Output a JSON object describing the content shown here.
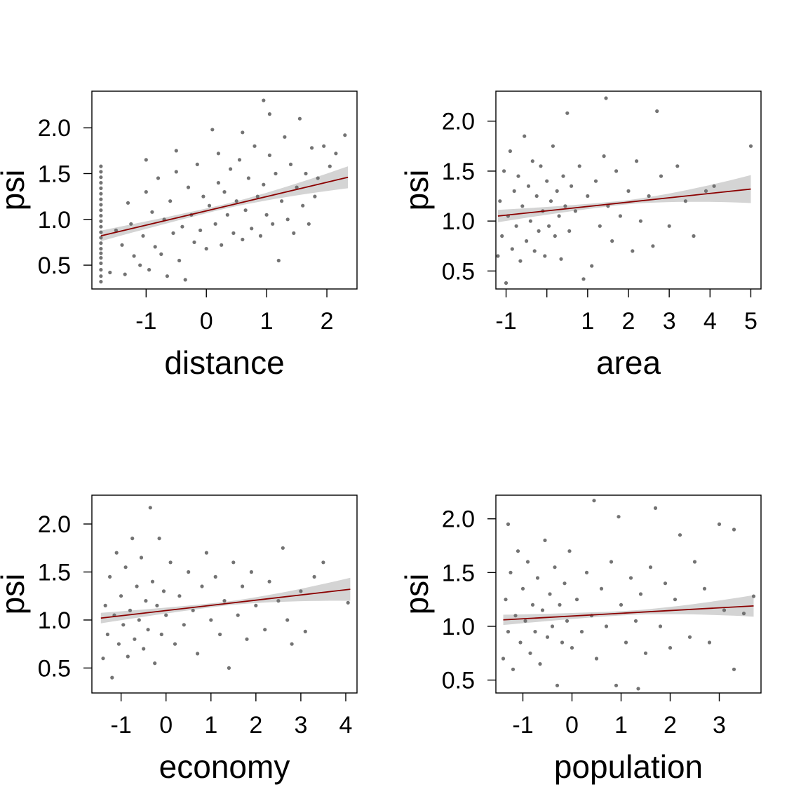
{
  "colors": {
    "points": "#737373",
    "fit_line": "#8b0000",
    "ci_band": "#d4d4d4"
  },
  "chart_data": [
    {
      "type": "scatter",
      "xlabel": "distance",
      "ylabel": "psi",
      "xlim": [
        -1.9,
        2.5
      ],
      "ylim": [
        0.24,
        2.4
      ],
      "xticks": [
        -1,
        0,
        1,
        2
      ],
      "xtick_labels": [
        "-1",
        "0",
        "1",
        "2"
      ],
      "yticks": [
        0.5,
        1.0,
        1.5,
        2.0
      ],
      "ytick_labels": [
        "0.5",
        "1.0",
        "1.5",
        "2.0"
      ],
      "fit": {
        "x0": -1.75,
        "y0": 0.82,
        "x1": 2.35,
        "y1": 1.46,
        "ci_start": 0.025,
        "ci_end": 0.12
      },
      "points": [
        [
          -1.75,
          0.32
        ],
        [
          -1.75,
          0.38
        ],
        [
          -1.75,
          0.45
        ],
        [
          -1.75,
          0.52
        ],
        [
          -1.75,
          0.58
        ],
        [
          -1.75,
          0.63
        ],
        [
          -1.75,
          0.68
        ],
        [
          -1.75,
          0.74
        ],
        [
          -1.75,
          0.8
        ],
        [
          -1.75,
          0.86
        ],
        [
          -1.75,
          0.92
        ],
        [
          -1.75,
          0.98
        ],
        [
          -1.75,
          1.04
        ],
        [
          -1.75,
          1.1
        ],
        [
          -1.75,
          1.16
        ],
        [
          -1.75,
          1.22
        ],
        [
          -1.75,
          1.28
        ],
        [
          -1.75,
          1.34
        ],
        [
          -1.75,
          1.4
        ],
        [
          -1.75,
          1.46
        ],
        [
          -1.75,
          1.52
        ],
        [
          -1.75,
          1.58
        ],
        [
          -1.6,
          0.42
        ],
        [
          -1.5,
          0.88
        ],
        [
          -1.4,
          0.72
        ],
        [
          -1.35,
          0.4
        ],
        [
          -1.3,
          1.18
        ],
        [
          -1.25,
          0.95
        ],
        [
          -1.2,
          0.6
        ],
        [
          -1.1,
          0.5
        ],
        [
          -1.05,
          0.82
        ],
        [
          -1.0,
          1.3
        ],
        [
          -0.95,
          0.45
        ],
        [
          -0.9,
          1.08
        ],
        [
          -0.85,
          0.7
        ],
        [
          -0.8,
          1.45
        ],
        [
          -0.75,
          0.62
        ],
        [
          -0.7,
          1.0
        ],
        [
          -0.65,
          0.38
        ],
        [
          -0.6,
          1.2
        ],
        [
          -0.55,
          0.85
        ],
        [
          -0.5,
          1.52
        ],
        [
          -0.45,
          0.55
        ],
        [
          -0.4,
          0.92
        ],
        [
          -0.35,
          0.34
        ],
        [
          -0.3,
          1.35
        ],
        [
          -0.25,
          1.05
        ],
        [
          -0.2,
          0.75
        ],
        [
          -0.15,
          1.6
        ],
        [
          -0.1,
          0.88
        ],
        [
          -0.05,
          1.25
        ],
        [
          0.0,
          0.68
        ],
        [
          0.05,
          1.15
        ],
        [
          0.1,
          1.98
        ],
        [
          0.15,
          0.95
        ],
        [
          0.2,
          1.4
        ],
        [
          0.25,
          0.72
        ],
        [
          0.3,
          1.3
        ],
        [
          0.35,
          1.05
        ],
        [
          0.4,
          1.55
        ],
        [
          0.45,
          0.85
        ],
        [
          0.5,
          1.2
        ],
        [
          0.55,
          1.65
        ],
        [
          0.6,
          0.78
        ],
        [
          0.65,
          1.1
        ],
        [
          0.7,
          1.45
        ],
        [
          0.75,
          0.9
        ],
        [
          0.8,
          1.8
        ],
        [
          0.85,
          1.25
        ],
        [
          0.9,
          0.82
        ],
        [
          0.95,
          1.38
        ],
        [
          1.0,
          1.05
        ],
        [
          1.05,
          1.7
        ],
        [
          1.1,
          0.95
        ],
        [
          1.15,
          1.5
        ],
        [
          1.2,
          0.55
        ],
        [
          1.25,
          1.2
        ],
        [
          1.3,
          1.9
        ],
        [
          1.35,
          1.0
        ],
        [
          1.4,
          1.6
        ],
        [
          1.45,
          0.85
        ],
        [
          1.5,
          1.35
        ],
        [
          1.55,
          2.1
        ],
        [
          1.6,
          1.15
        ],
        [
          1.65,
          1.5
        ],
        [
          1.7,
          0.95
        ],
        [
          1.75,
          1.78
        ],
        [
          1.8,
          1.25
        ],
        [
          1.85,
          1.45
        ],
        [
          1.95,
          1.8
        ],
        [
          2.05,
          1.58
        ],
        [
          2.15,
          1.72
        ],
        [
          2.3,
          1.92
        ],
        [
          0.95,
          2.3
        ],
        [
          -0.5,
          1.75
        ],
        [
          -1.0,
          1.65
        ],
        [
          0.2,
          1.72
        ],
        [
          0.6,
          1.95
        ],
        [
          1.05,
          2.15
        ]
      ]
    },
    {
      "type": "scatter",
      "xlabel": "area",
      "ylabel": "psi",
      "xlim": [
        -1.25,
        5.25
      ],
      "ylim": [
        0.32,
        2.3
      ],
      "xticks": [
        -1,
        1,
        2,
        3,
        4,
        5
      ],
      "xtick_labels": [
        "-1",
        "1",
        "2",
        "3",
        "4",
        "5"
      ],
      "minor_xticks": [
        0
      ],
      "yticks": [
        0.5,
        1.0,
        1.5,
        2.0
      ],
      "ytick_labels": [
        "0.5",
        "1.0",
        "1.5",
        "2.0"
      ],
      "fit": {
        "x0": -1.2,
        "y0": 1.05,
        "x1": 5.0,
        "y1": 1.32,
        "ci_start": 0.02,
        "ci_end": 0.14
      },
      "points": [
        [
          -1.2,
          0.65
        ],
        [
          -1.15,
          1.2
        ],
        [
          -1.1,
          0.85
        ],
        [
          -1.05,
          1.5
        ],
        [
          -1.0,
          0.38
        ],
        [
          -0.95,
          1.05
        ],
        [
          -0.9,
          1.7
        ],
        [
          -0.85,
          0.72
        ],
        [
          -0.8,
          1.3
        ],
        [
          -0.75,
          0.95
        ],
        [
          -0.7,
          1.45
        ],
        [
          -0.65,
          0.6
        ],
        [
          -0.6,
          1.15
        ],
        [
          -0.55,
          1.85
        ],
        [
          -0.5,
          0.8
        ],
        [
          -0.45,
          1.35
        ],
        [
          -0.4,
          1.0
        ],
        [
          -0.35,
          1.6
        ],
        [
          -0.3,
          0.7
        ],
        [
          -0.25,
          1.25
        ],
        [
          -0.2,
          0.9
        ],
        [
          -0.15,
          1.55
        ],
        [
          -0.1,
          1.1
        ],
        [
          -0.05,
          0.65
        ],
        [
          0.0,
          1.4
        ],
        [
          0.05,
          0.95
        ],
        [
          0.1,
          1.2
        ],
        [
          0.15,
          1.75
        ],
        [
          0.2,
          0.85
        ],
        [
          0.25,
          1.3
        ],
        [
          0.3,
          1.05
        ],
        [
          0.35,
          0.62
        ],
        [
          0.4,
          1.45
        ],
        [
          0.45,
          1.15
        ],
        [
          0.5,
          2.08
        ],
        [
          0.55,
          0.9
        ],
        [
          0.6,
          1.35
        ],
        [
          0.7,
          1.1
        ],
        [
          0.8,
          1.55
        ],
        [
          0.9,
          0.42
        ],
        [
          1.0,
          1.25
        ],
        [
          1.1,
          0.55
        ],
        [
          1.2,
          1.4
        ],
        [
          1.3,
          0.95
        ],
        [
          1.4,
          1.65
        ],
        [
          1.45,
          2.23
        ],
        [
          1.5,
          1.15
        ],
        [
          1.6,
          0.8
        ],
        [
          1.7,
          1.5
        ],
        [
          1.8,
          1.05
        ],
        [
          2.0,
          1.3
        ],
        [
          2.1,
          0.7
        ],
        [
          2.2,
          1.6
        ],
        [
          2.3,
          1.0
        ],
        [
          2.5,
          1.25
        ],
        [
          2.6,
          0.75
        ],
        [
          2.7,
          2.1
        ],
        [
          2.8,
          1.45
        ],
        [
          3.0,
          0.95
        ],
        [
          3.2,
          1.55
        ],
        [
          3.4,
          1.2
        ],
        [
          3.6,
          0.85
        ],
        [
          3.9,
          1.3
        ],
        [
          4.1,
          1.35
        ],
        [
          5.0,
          1.75
        ]
      ]
    },
    {
      "type": "scatter",
      "xlabel": "economy",
      "ylabel": "psi",
      "xlim": [
        -1.65,
        4.25
      ],
      "ylim": [
        0.24,
        2.3
      ],
      "xticks": [
        -1,
        0,
        1,
        2,
        3,
        4
      ],
      "xtick_labels": [
        "-1",
        "0",
        "1",
        "2",
        "3",
        "4"
      ],
      "yticks": [
        0.5,
        1.0,
        1.5,
        2.0
      ],
      "ytick_labels": [
        "0.5",
        "1.0",
        "1.5",
        "2.0"
      ],
      "fit": {
        "x0": -1.45,
        "y0": 1.02,
        "x1": 4.1,
        "y1": 1.32,
        "ci_start": 0.02,
        "ci_end": 0.12
      },
      "points": [
        [
          -1.4,
          0.6
        ],
        [
          -1.35,
          1.15
        ],
        [
          -1.3,
          0.85
        ],
        [
          -1.25,
          1.45
        ],
        [
          -1.2,
          0.4
        ],
        [
          -1.15,
          1.05
        ],
        [
          -1.1,
          1.7
        ],
        [
          -1.05,
          0.75
        ],
        [
          -1.0,
          1.25
        ],
        [
          -0.95,
          0.95
        ],
        [
          -0.9,
          1.55
        ],
        [
          -0.85,
          0.62
        ],
        [
          -0.8,
          1.1
        ],
        [
          -0.75,
          1.85
        ],
        [
          -0.7,
          0.8
        ],
        [
          -0.65,
          1.35
        ],
        [
          -0.6,
          1.0
        ],
        [
          -0.55,
          1.65
        ],
        [
          -0.5,
          0.7
        ],
        [
          -0.45,
          1.2
        ],
        [
          -0.4,
          0.9
        ],
        [
          -0.35,
          2.17
        ],
        [
          -0.3,
          1.4
        ],
        [
          -0.25,
          0.55
        ],
        [
          -0.2,
          1.15
        ],
        [
          -0.15,
          1.85
        ],
        [
          -0.1,
          0.85
        ],
        [
          -0.05,
          1.3
        ],
        [
          0.0,
          1.05
        ],
        [
          0.1,
          1.6
        ],
        [
          0.2,
          0.75
        ],
        [
          0.3,
          1.25
        ],
        [
          0.4,
          0.95
        ],
        [
          0.5,
          1.5
        ],
        [
          0.6,
          1.1
        ],
        [
          0.7,
          0.65
        ],
        [
          0.8,
          1.35
        ],
        [
          0.9,
          1.7
        ],
        [
          1.0,
          1.0
        ],
        [
          1.1,
          1.45
        ],
        [
          1.2,
          0.85
        ],
        [
          1.3,
          1.2
        ],
        [
          1.4,
          0.5
        ],
        [
          1.5,
          1.6
        ],
        [
          1.6,
          1.05
        ],
        [
          1.7,
          1.35
        ],
        [
          1.8,
          0.8
        ],
        [
          1.9,
          1.5
        ],
        [
          2.0,
          1.15
        ],
        [
          2.2,
          0.9
        ],
        [
          2.3,
          1.4
        ],
        [
          2.5,
          1.2
        ],
        [
          2.6,
          1.75
        ],
        [
          2.7,
          1.0
        ],
        [
          2.8,
          0.75
        ],
        [
          3.0,
          1.3
        ],
        [
          3.1,
          0.88
        ],
        [
          3.3,
          1.45
        ],
        [
          3.5,
          1.6
        ],
        [
          4.05,
          1.18
        ]
      ]
    },
    {
      "type": "scatter",
      "xlabel": "population",
      "ylabel": "psi",
      "xlim": [
        -1.55,
        3.85
      ],
      "ylim": [
        0.38,
        2.22
      ],
      "xticks": [
        -1,
        0,
        1,
        2,
        3
      ],
      "xtick_labels": [
        "-1",
        "0",
        "1",
        "2",
        "3"
      ],
      "yticks": [
        0.5,
        1.0,
        1.5,
        2.0
      ],
      "ytick_labels": [
        "0.5",
        "1.0",
        "1.5",
        "2.0"
      ],
      "fit": {
        "x0": -1.4,
        "y0": 1.06,
        "x1": 3.7,
        "y1": 1.19,
        "ci_start": 0.02,
        "ci_end": 0.1
      },
      "points": [
        [
          -1.4,
          0.7
        ],
        [
          -1.35,
          1.25
        ],
        [
          -1.3,
          0.95
        ],
        [
          -1.3,
          1.95
        ],
        [
          -1.25,
          1.5
        ],
        [
          -1.2,
          0.6
        ],
        [
          -1.15,
          1.1
        ],
        [
          -1.1,
          1.7
        ],
        [
          -1.05,
          0.85
        ],
        [
          -1.0,
          1.35
        ],
        [
          -0.95,
          1.05
        ],
        [
          -0.9,
          1.6
        ],
        [
          -0.85,
          0.75
        ],
        [
          -0.8,
          1.2
        ],
        [
          -0.75,
          0.95
        ],
        [
          -0.7,
          1.45
        ],
        [
          -0.65,
          0.65
        ],
        [
          -0.6,
          1.15
        ],
        [
          -0.55,
          1.8
        ],
        [
          -0.5,
          0.9
        ],
        [
          -0.45,
          1.3
        ],
        [
          -0.4,
          1.0
        ],
        [
          -0.35,
          1.55
        ],
        [
          -0.3,
          0.45
        ],
        [
          -0.25,
          1.2
        ],
        [
          -0.2,
          0.85
        ],
        [
          -0.15,
          1.4
        ],
        [
          -0.1,
          1.05
        ],
        [
          -0.05,
          1.7
        ],
        [
          0.0,
          0.8
        ],
        [
          0.1,
          1.25
        ],
        [
          0.2,
          0.95
        ],
        [
          0.3,
          1.5
        ],
        [
          0.4,
          1.1
        ],
        [
          0.45,
          2.17
        ],
        [
          0.5,
          0.7
        ],
        [
          0.6,
          1.35
        ],
        [
          0.7,
          1.0
        ],
        [
          0.8,
          1.6
        ],
        [
          0.9,
          0.45
        ],
        [
          0.95,
          2.02
        ],
        [
          1.0,
          1.2
        ],
        [
          1.1,
          0.85
        ],
        [
          1.2,
          1.45
        ],
        [
          1.3,
          1.05
        ],
        [
          1.35,
          0.42
        ],
        [
          1.4,
          1.3
        ],
        [
          1.5,
          0.75
        ],
        [
          1.6,
          1.55
        ],
        [
          1.7,
          2.1
        ],
        [
          1.8,
          1.0
        ],
        [
          1.9,
          1.4
        ],
        [
          2.0,
          0.8
        ],
        [
          2.1,
          1.25
        ],
        [
          2.2,
          1.85
        ],
        [
          2.4,
          0.9
        ],
        [
          2.5,
          1.6
        ],
        [
          2.7,
          1.35
        ],
        [
          2.8,
          0.85
        ],
        [
          3.0,
          1.95
        ],
        [
          3.1,
          1.15
        ],
        [
          3.3,
          1.9
        ],
        [
          3.3,
          0.6
        ],
        [
          3.5,
          1.12
        ],
        [
          3.7,
          1.28
        ]
      ]
    }
  ]
}
